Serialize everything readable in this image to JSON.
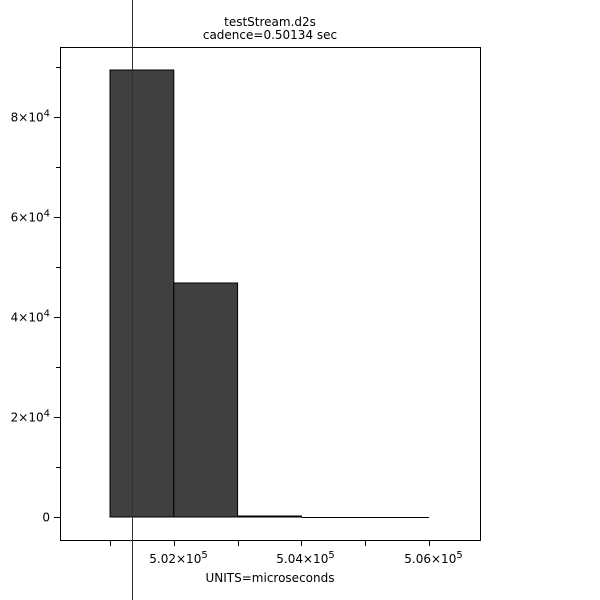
{
  "chart_data": {
    "type": "bar",
    "title": "testStream.d2s",
    "subtitle": "cadence=0.50134 sec",
    "xlabel": "UNITS=microseconds",
    "ylabel": "",
    "xlim": [
      500216,
      506800
    ],
    "ylim": [
      -4600,
      94000
    ],
    "bar_color": "#404040",
    "bins": [
      {
        "start": 501000,
        "end": 502000,
        "value": 89400
      },
      {
        "start": 502000,
        "end": 503000,
        "value": 46800
      },
      {
        "start": 503000,
        "end": 504000,
        "value": 200
      },
      {
        "start": 504000,
        "end": 505000,
        "value": 0
      },
      {
        "start": 505000,
        "end": 506000,
        "value": 0
      }
    ],
    "marker_line_x": 501340,
    "x_ticks": [
      {
        "value": 501000,
        "label": ""
      },
      {
        "value": 502000,
        "label": "5.02×10",
        "exp": "5"
      },
      {
        "value": 503000,
        "label": ""
      },
      {
        "value": 504000,
        "label": "5.04×10",
        "exp": "5"
      },
      {
        "value": 505000,
        "label": ""
      },
      {
        "value": 506000,
        "label": "5.06×10",
        "exp": "5"
      }
    ],
    "y_ticks": [
      {
        "value": 0,
        "label": "0",
        "exp": ""
      },
      {
        "value": 20000,
        "label": "2×10",
        "exp": "4"
      },
      {
        "value": 40000,
        "label": "4×10",
        "exp": "4"
      },
      {
        "value": 60000,
        "label": "6×10",
        "exp": "4"
      },
      {
        "value": 80000,
        "label": "8×10",
        "exp": "4"
      }
    ],
    "y_minor_ticks": [
      10000,
      30000,
      50000,
      70000,
      90000
    ],
    "grid": false,
    "legend": "none"
  }
}
